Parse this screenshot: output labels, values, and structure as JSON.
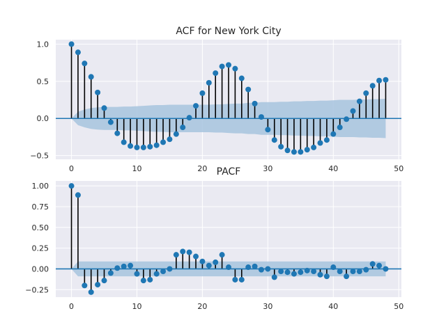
{
  "chart_data": [
    {
      "type": "stem",
      "title": "ACF for New York City",
      "xlim": [
        -2.4,
        50.4
      ],
      "ylim": [
        -0.55,
        1.06
      ],
      "xticks": [
        0,
        10,
        20,
        30,
        40,
        50
      ],
      "yticks": [
        -0.5,
        0.0,
        0.5,
        1.0
      ],
      "ytick_labels": [
        "−0.5",
        "0.0",
        "0.5",
        "1.0"
      ],
      "grid": true,
      "lags": [
        0,
        1,
        2,
        3,
        4,
        5,
        6,
        7,
        8,
        9,
        10,
        11,
        12,
        13,
        14,
        15,
        16,
        17,
        18,
        19,
        20,
        21,
        22,
        23,
        24,
        25,
        26,
        27,
        28,
        29,
        30,
        31,
        32,
        33,
        34,
        35,
        36,
        37,
        38,
        39,
        40,
        41,
        42,
        43,
        44,
        45,
        46,
        47,
        48
      ],
      "values": [
        1.0,
        0.89,
        0.74,
        0.56,
        0.35,
        0.14,
        -0.05,
        -0.2,
        -0.32,
        -0.37,
        -0.39,
        -0.39,
        -0.38,
        -0.36,
        -0.32,
        -0.28,
        -0.21,
        -0.12,
        0.01,
        0.17,
        0.34,
        0.48,
        0.61,
        0.7,
        0.72,
        0.67,
        0.54,
        0.39,
        0.2,
        0.02,
        -0.15,
        -0.29,
        -0.38,
        -0.43,
        -0.45,
        -0.45,
        -0.42,
        -0.39,
        -0.33,
        -0.29,
        -0.21,
        -0.12,
        -0.01,
        0.1,
        0.23,
        0.34,
        0.44,
        0.51,
        0.52
      ],
      "confint_upper": [
        0.0,
        0.09,
        0.12,
        0.14,
        0.15,
        0.155,
        0.155,
        0.155,
        0.16,
        0.16,
        0.165,
        0.17,
        0.175,
        0.18,
        0.18,
        0.185,
        0.185,
        0.185,
        0.185,
        0.185,
        0.185,
        0.185,
        0.19,
        0.19,
        0.195,
        0.2,
        0.2,
        0.21,
        0.21,
        0.22,
        0.22,
        0.22,
        0.225,
        0.225,
        0.23,
        0.23,
        0.235,
        0.235,
        0.24,
        0.24,
        0.245,
        0.25,
        0.25,
        0.25,
        0.255,
        0.255,
        0.26,
        0.26,
        0.265
      ]
    },
    {
      "type": "stem",
      "title": "PACF",
      "xlim": [
        -2.4,
        50.4
      ],
      "ylim": [
        -0.34,
        1.06
      ],
      "xticks": [
        0,
        10,
        20,
        30,
        40,
        50
      ],
      "yticks": [
        -0.25,
        0.0,
        0.25,
        0.5,
        0.75,
        1.0
      ],
      "ytick_labels": [
        "−0.25",
        "0.00",
        "0.25",
        "0.50",
        "0.75",
        "1.00"
      ],
      "grid": true,
      "lags": [
        0,
        1,
        2,
        3,
        4,
        5,
        6,
        7,
        8,
        9,
        10,
        11,
        12,
        13,
        14,
        15,
        16,
        17,
        18,
        19,
        20,
        21,
        22,
        23,
        24,
        25,
        26,
        27,
        28,
        29,
        30,
        31,
        32,
        33,
        34,
        35,
        36,
        37,
        38,
        39,
        40,
        41,
        42,
        43,
        44,
        45,
        46,
        47,
        48
      ],
      "values": [
        1.0,
        0.89,
        -0.2,
        -0.28,
        -0.19,
        -0.14,
        -0.05,
        0.01,
        0.03,
        0.04,
        -0.06,
        -0.14,
        -0.13,
        -0.06,
        -0.03,
        0.0,
        0.17,
        0.21,
        0.2,
        0.15,
        0.09,
        0.04,
        0.08,
        0.17,
        0.02,
        -0.13,
        -0.13,
        0.02,
        0.03,
        -0.01,
        0.0,
        -0.1,
        -0.03,
        -0.04,
        -0.06,
        -0.04,
        -0.02,
        -0.03,
        -0.07,
        -0.09,
        0.02,
        -0.03,
        -0.09,
        -0.03,
        -0.03,
        -0.01,
        0.06,
        0.04,
        0.0
      ],
      "confint_upper": [
        0.0,
        0.09,
        0.09,
        0.09,
        0.09,
        0.09,
        0.09,
        0.09,
        0.09,
        0.09,
        0.09,
        0.09,
        0.09,
        0.09,
        0.09,
        0.09,
        0.09,
        0.09,
        0.09,
        0.09,
        0.09,
        0.09,
        0.09,
        0.09,
        0.09,
        0.09,
        0.09,
        0.09,
        0.09,
        0.09,
        0.09,
        0.09,
        0.09,
        0.09,
        0.09,
        0.09,
        0.09,
        0.09,
        0.09,
        0.09,
        0.09,
        0.09,
        0.09,
        0.09,
        0.09,
        0.09,
        0.09,
        0.09,
        0.09
      ]
    }
  ],
  "colors": {
    "axes_bg": "#eaeaf2",
    "grid": "#ffffff",
    "marker": "#1f77b4",
    "stem": "#000000",
    "baseline": "#1f77b4",
    "band": "#a7c4de"
  }
}
